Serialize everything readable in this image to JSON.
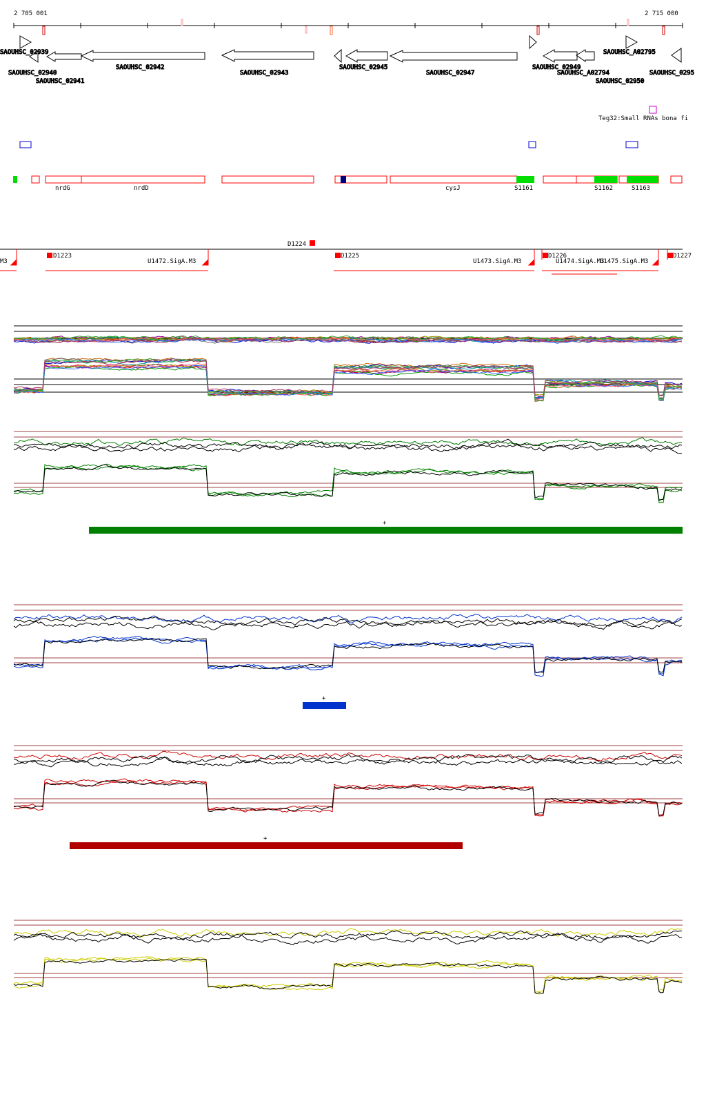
{
  "coords": {
    "start": "2 705 001",
    "end": "2 715 000"
  },
  "colors": {
    "gene_outline": "#000000",
    "feature_outline": "#ff0000",
    "feature_fill": "#00dd00",
    "feature_dark": "#000080",
    "box_blue": "#0000cc",
    "box_magenta": "#cc00cc",
    "tss_red": "#ff0000",
    "ref_line": "#a04040",
    "green": "#008000",
    "blue": "#0033cc",
    "red": "#cc0000",
    "yellow": "#cccc00",
    "black": "#000000"
  },
  "genes": [
    "SAOUHSC_02939",
    "SAOUHSC_02940",
    "SAOUHSC_02941",
    "SAOUHSC_02942",
    "SAOUHSC_02943",
    "SAOUHSC_02945",
    "SAOUHSC_02947",
    "SAOUHSC_02949",
    "SAOUHSC_A02794",
    "SAOUHSC_02950",
    "SAOUHSC_A02795",
    "SAOUHSC_0295"
  ],
  "small_rna": {
    "label": "Teg32:Small RNAs bona fi"
  },
  "features": [
    "nrdG",
    "nrdD",
    "cysJ",
    "S1161",
    "S1162",
    "S1163"
  ],
  "tss": [
    "D1223",
    "D1224",
    "D1225",
    "D1226",
    "D1227",
    "M3",
    "U1472.SigA.M3",
    "U1473.SigA.M3",
    "U1474.SigA.M3",
    "U1475.SigA.M3"
  ],
  "markers": [
    "+",
    "+",
    "+"
  ]
}
